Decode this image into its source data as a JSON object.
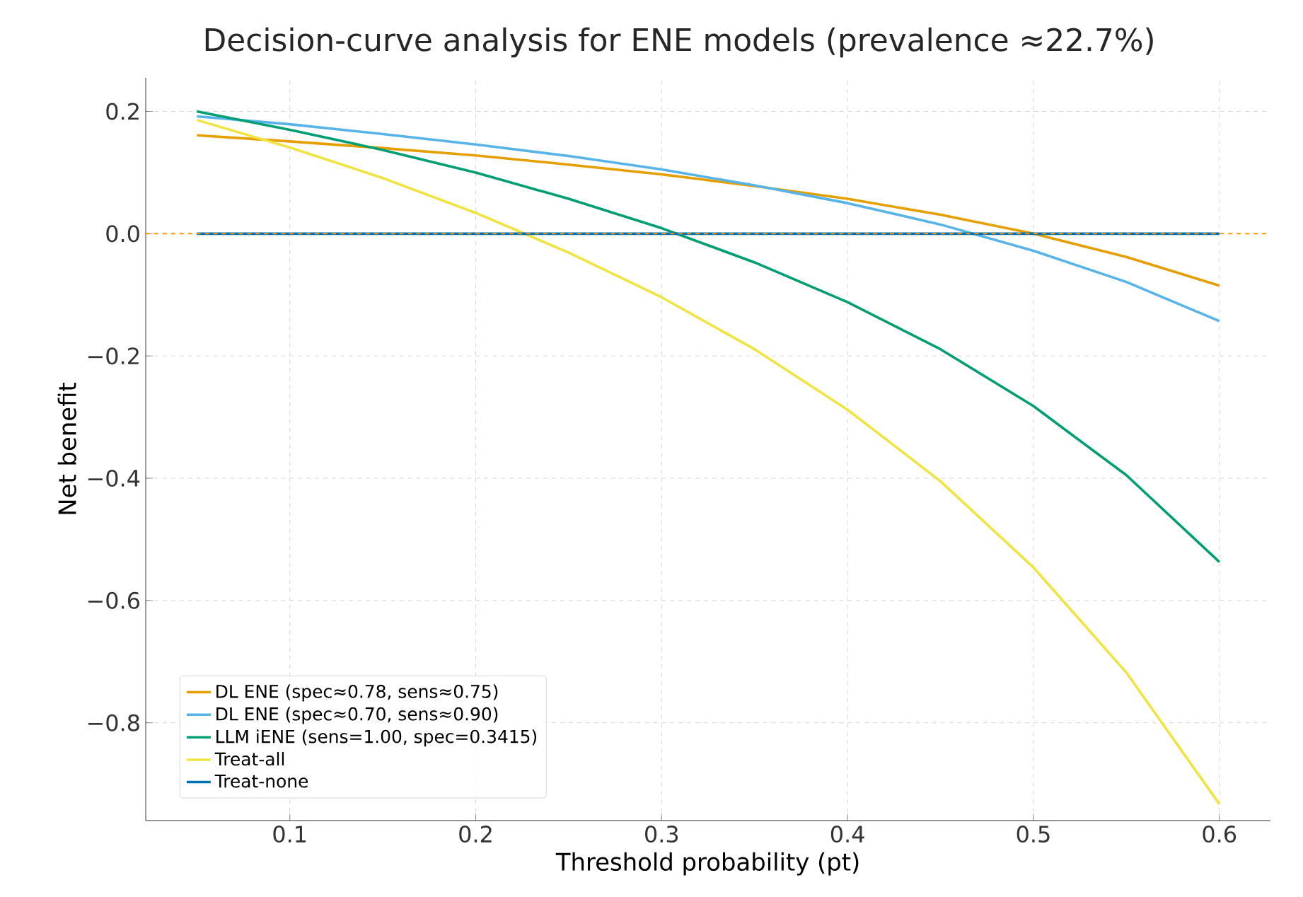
{
  "chart_data": {
    "type": "line",
    "title": "Decision-curve analysis for ENE models (prevalence ≈22.7%)",
    "xlabel": "Threshold probability (pt)",
    "ylabel": "Net benefit",
    "x": [
      0.05,
      0.1,
      0.15,
      0.2,
      0.25,
      0.3,
      0.35,
      0.4,
      0.45,
      0.5,
      0.55,
      0.6
    ],
    "series": [
      {
        "name": "DL ENE (spec≈0.78, sens≈0.75)",
        "color": "#e69f00",
        "values": [
          0.161,
          0.151,
          0.14,
          0.128,
          0.113,
          0.097,
          0.078,
          0.057,
          0.031,
          0.0,
          -0.038,
          -0.085
        ]
      },
      {
        "name": "DL ENE (spec≈0.70, sens≈0.90)",
        "color": "#56b4e9",
        "values": [
          0.192,
          0.179,
          0.163,
          0.146,
          0.127,
          0.105,
          0.079,
          0.05,
          0.015,
          -0.028,
          -0.079,
          -0.143
        ]
      },
      {
        "name": "LLM iENE (sens=1.00, spec=0.3415)",
        "color": "#009e73",
        "values": [
          0.2,
          0.17,
          0.137,
          0.1,
          0.057,
          0.009,
          -0.047,
          -0.112,
          -0.189,
          -0.282,
          -0.395,
          -0.537
        ]
      },
      {
        "name": "Treat-all",
        "color": "#f0e442",
        "values": [
          0.186,
          0.141,
          0.091,
          0.034,
          -0.031,
          -0.104,
          -0.189,
          -0.288,
          -0.405,
          -0.546,
          -0.718,
          -0.933
        ]
      },
      {
        "name": "Treat-none",
        "color": "#0072b2",
        "values": [
          0,
          0,
          0,
          0,
          0,
          0,
          0,
          0,
          0,
          0,
          0,
          0
        ]
      }
    ],
    "ref_lines": [
      {
        "axis": "y",
        "value": 0,
        "color": "#ff9900",
        "line_style": "dashed"
      }
    ],
    "xlim": [
      0.0225,
      0.6275
    ],
    "ylim": [
      -0.96,
      0.255
    ],
    "xticks": [
      0.1,
      0.2,
      0.3,
      0.4,
      0.5,
      0.6
    ],
    "yticks": [
      {
        "value": -0.8,
        "label": "−0.8"
      },
      {
        "value": -0.6,
        "label": "−0.6"
      },
      {
        "value": -0.4,
        "label": "−0.4"
      },
      {
        "value": -0.2,
        "label": "−0.2"
      },
      {
        "value": 0,
        "label": "0.0"
      },
      0.2
    ],
    "grid": true,
    "legend": "bottom left",
    "marker": "none",
    "line_style": "solid"
  }
}
